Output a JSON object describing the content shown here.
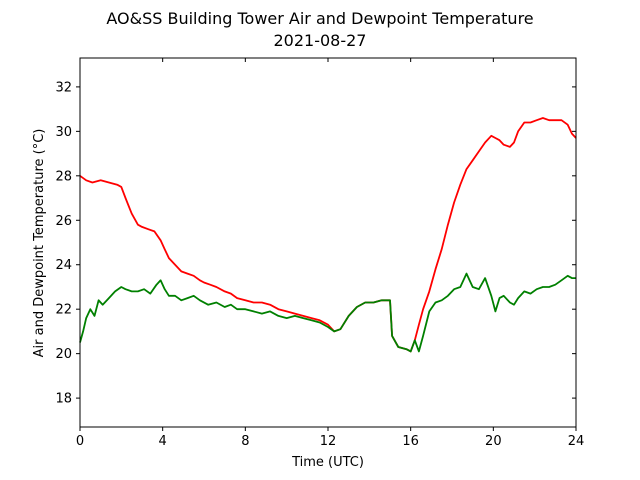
{
  "chart_data": {
    "type": "line",
    "title": "AO&SS Building Tower Air and Dewpoint Temperature",
    "subtitle": "2021-08-27",
    "xlabel": "Time (UTC)",
    "ylabel": "Air and Dewpoint Temperature (°C)",
    "xlim": [
      0,
      24
    ],
    "ylim": [
      16.7,
      33.3
    ],
    "xticks": [
      0,
      4,
      8,
      12,
      16,
      20,
      24
    ],
    "yticks": [
      18,
      20,
      22,
      24,
      26,
      28,
      30,
      32
    ],
    "grid": false,
    "series": [
      {
        "color": "#ff0000",
        "x": [
          0,
          0.3,
          0.6,
          1.0,
          1.4,
          1.8,
          2.0,
          2.2,
          2.5,
          2.8,
          3.0,
          3.3,
          3.6,
          3.9,
          4.1,
          4.3,
          4.6,
          4.9,
          5.2,
          5.5,
          5.8,
          6.0,
          6.3,
          6.6,
          7.0,
          7.3,
          7.6,
          8.0,
          8.4,
          8.8,
          9.2,
          9.6,
          10.0,
          10.4,
          10.8,
          11.2,
          11.6,
          12.0,
          12.3,
          12.6,
          13.0,
          13.4,
          13.8,
          14.2,
          14.6,
          15.0,
          15.1,
          15.4,
          15.8,
          16.0,
          16.2,
          16.4,
          16.6,
          16.9,
          17.2,
          17.5,
          17.8,
          18.1,
          18.4,
          18.7,
          19.0,
          19.3,
          19.6,
          19.9,
          20.1,
          20.3,
          20.5,
          20.8,
          21.0,
          21.2,
          21.5,
          21.8,
          22.1,
          22.4,
          22.7,
          23.0,
          23.3,
          23.6,
          23.8,
          24.0
        ],
        "y": [
          28.0,
          27.8,
          27.7,
          27.8,
          27.7,
          27.6,
          27.5,
          27.0,
          26.3,
          25.8,
          25.7,
          25.6,
          25.5,
          25.1,
          24.7,
          24.3,
          24.0,
          23.7,
          23.6,
          23.5,
          23.3,
          23.2,
          23.1,
          23.0,
          22.8,
          22.7,
          22.5,
          22.4,
          22.3,
          22.3,
          22.2,
          22.0,
          21.9,
          21.8,
          21.7,
          21.6,
          21.5,
          21.3,
          21.0,
          21.1,
          21.7,
          22.1,
          22.3,
          22.3,
          22.4,
          22.4,
          20.8,
          20.3,
          20.2,
          20.1,
          20.6,
          21.3,
          22.0,
          22.8,
          23.8,
          24.7,
          25.8,
          26.8,
          27.6,
          28.3,
          28.7,
          29.1,
          29.5,
          29.8,
          29.7,
          29.6,
          29.4,
          29.3,
          29.5,
          30.0,
          30.4,
          30.4,
          30.5,
          30.6,
          30.5,
          30.5,
          30.5,
          30.3,
          29.9,
          29.7
        ]
      },
      {
        "color": "#008000",
        "x": [
          0,
          0.15,
          0.3,
          0.5,
          0.7,
          0.9,
          1.1,
          1.4,
          1.7,
          2.0,
          2.2,
          2.5,
          2.8,
          3.1,
          3.4,
          3.7,
          3.9,
          4.1,
          4.3,
          4.6,
          4.9,
          5.2,
          5.5,
          5.8,
          6.2,
          6.6,
          7.0,
          7.3,
          7.6,
          8.0,
          8.4,
          8.8,
          9.2,
          9.6,
          10.0,
          10.4,
          10.8,
          11.2,
          11.6,
          12.0,
          12.3,
          12.6,
          13.0,
          13.4,
          13.8,
          14.2,
          14.6,
          15.0,
          15.1,
          15.4,
          15.8,
          16.0,
          16.2,
          16.4,
          16.6,
          16.9,
          17.2,
          17.5,
          17.8,
          18.1,
          18.4,
          18.7,
          19.0,
          19.3,
          19.6,
          19.9,
          20.1,
          20.3,
          20.5,
          20.8,
          21.0,
          21.2,
          21.5,
          21.8,
          22.1,
          22.4,
          22.7,
          23.0,
          23.3,
          23.6,
          23.8,
          24.0
        ],
        "y": [
          20.5,
          21.0,
          21.6,
          22.0,
          21.7,
          22.4,
          22.2,
          22.5,
          22.8,
          23.0,
          22.9,
          22.8,
          22.8,
          22.9,
          22.7,
          23.1,
          23.3,
          22.9,
          22.6,
          22.6,
          22.4,
          22.5,
          22.6,
          22.4,
          22.2,
          22.3,
          22.1,
          22.2,
          22.0,
          22.0,
          21.9,
          21.8,
          21.9,
          21.7,
          21.6,
          21.7,
          21.6,
          21.5,
          21.4,
          21.2,
          21.0,
          21.1,
          21.7,
          22.1,
          22.3,
          22.3,
          22.4,
          22.4,
          20.8,
          20.3,
          20.2,
          20.1,
          20.6,
          20.1,
          20.8,
          21.9,
          22.3,
          22.4,
          22.6,
          22.9,
          23.0,
          23.6,
          23.0,
          22.9,
          23.4,
          22.6,
          21.9,
          22.5,
          22.6,
          22.3,
          22.2,
          22.5,
          22.8,
          22.7,
          22.9,
          23.0,
          23.0,
          23.1,
          23.3,
          23.5,
          23.4,
          23.4
        ]
      }
    ]
  }
}
